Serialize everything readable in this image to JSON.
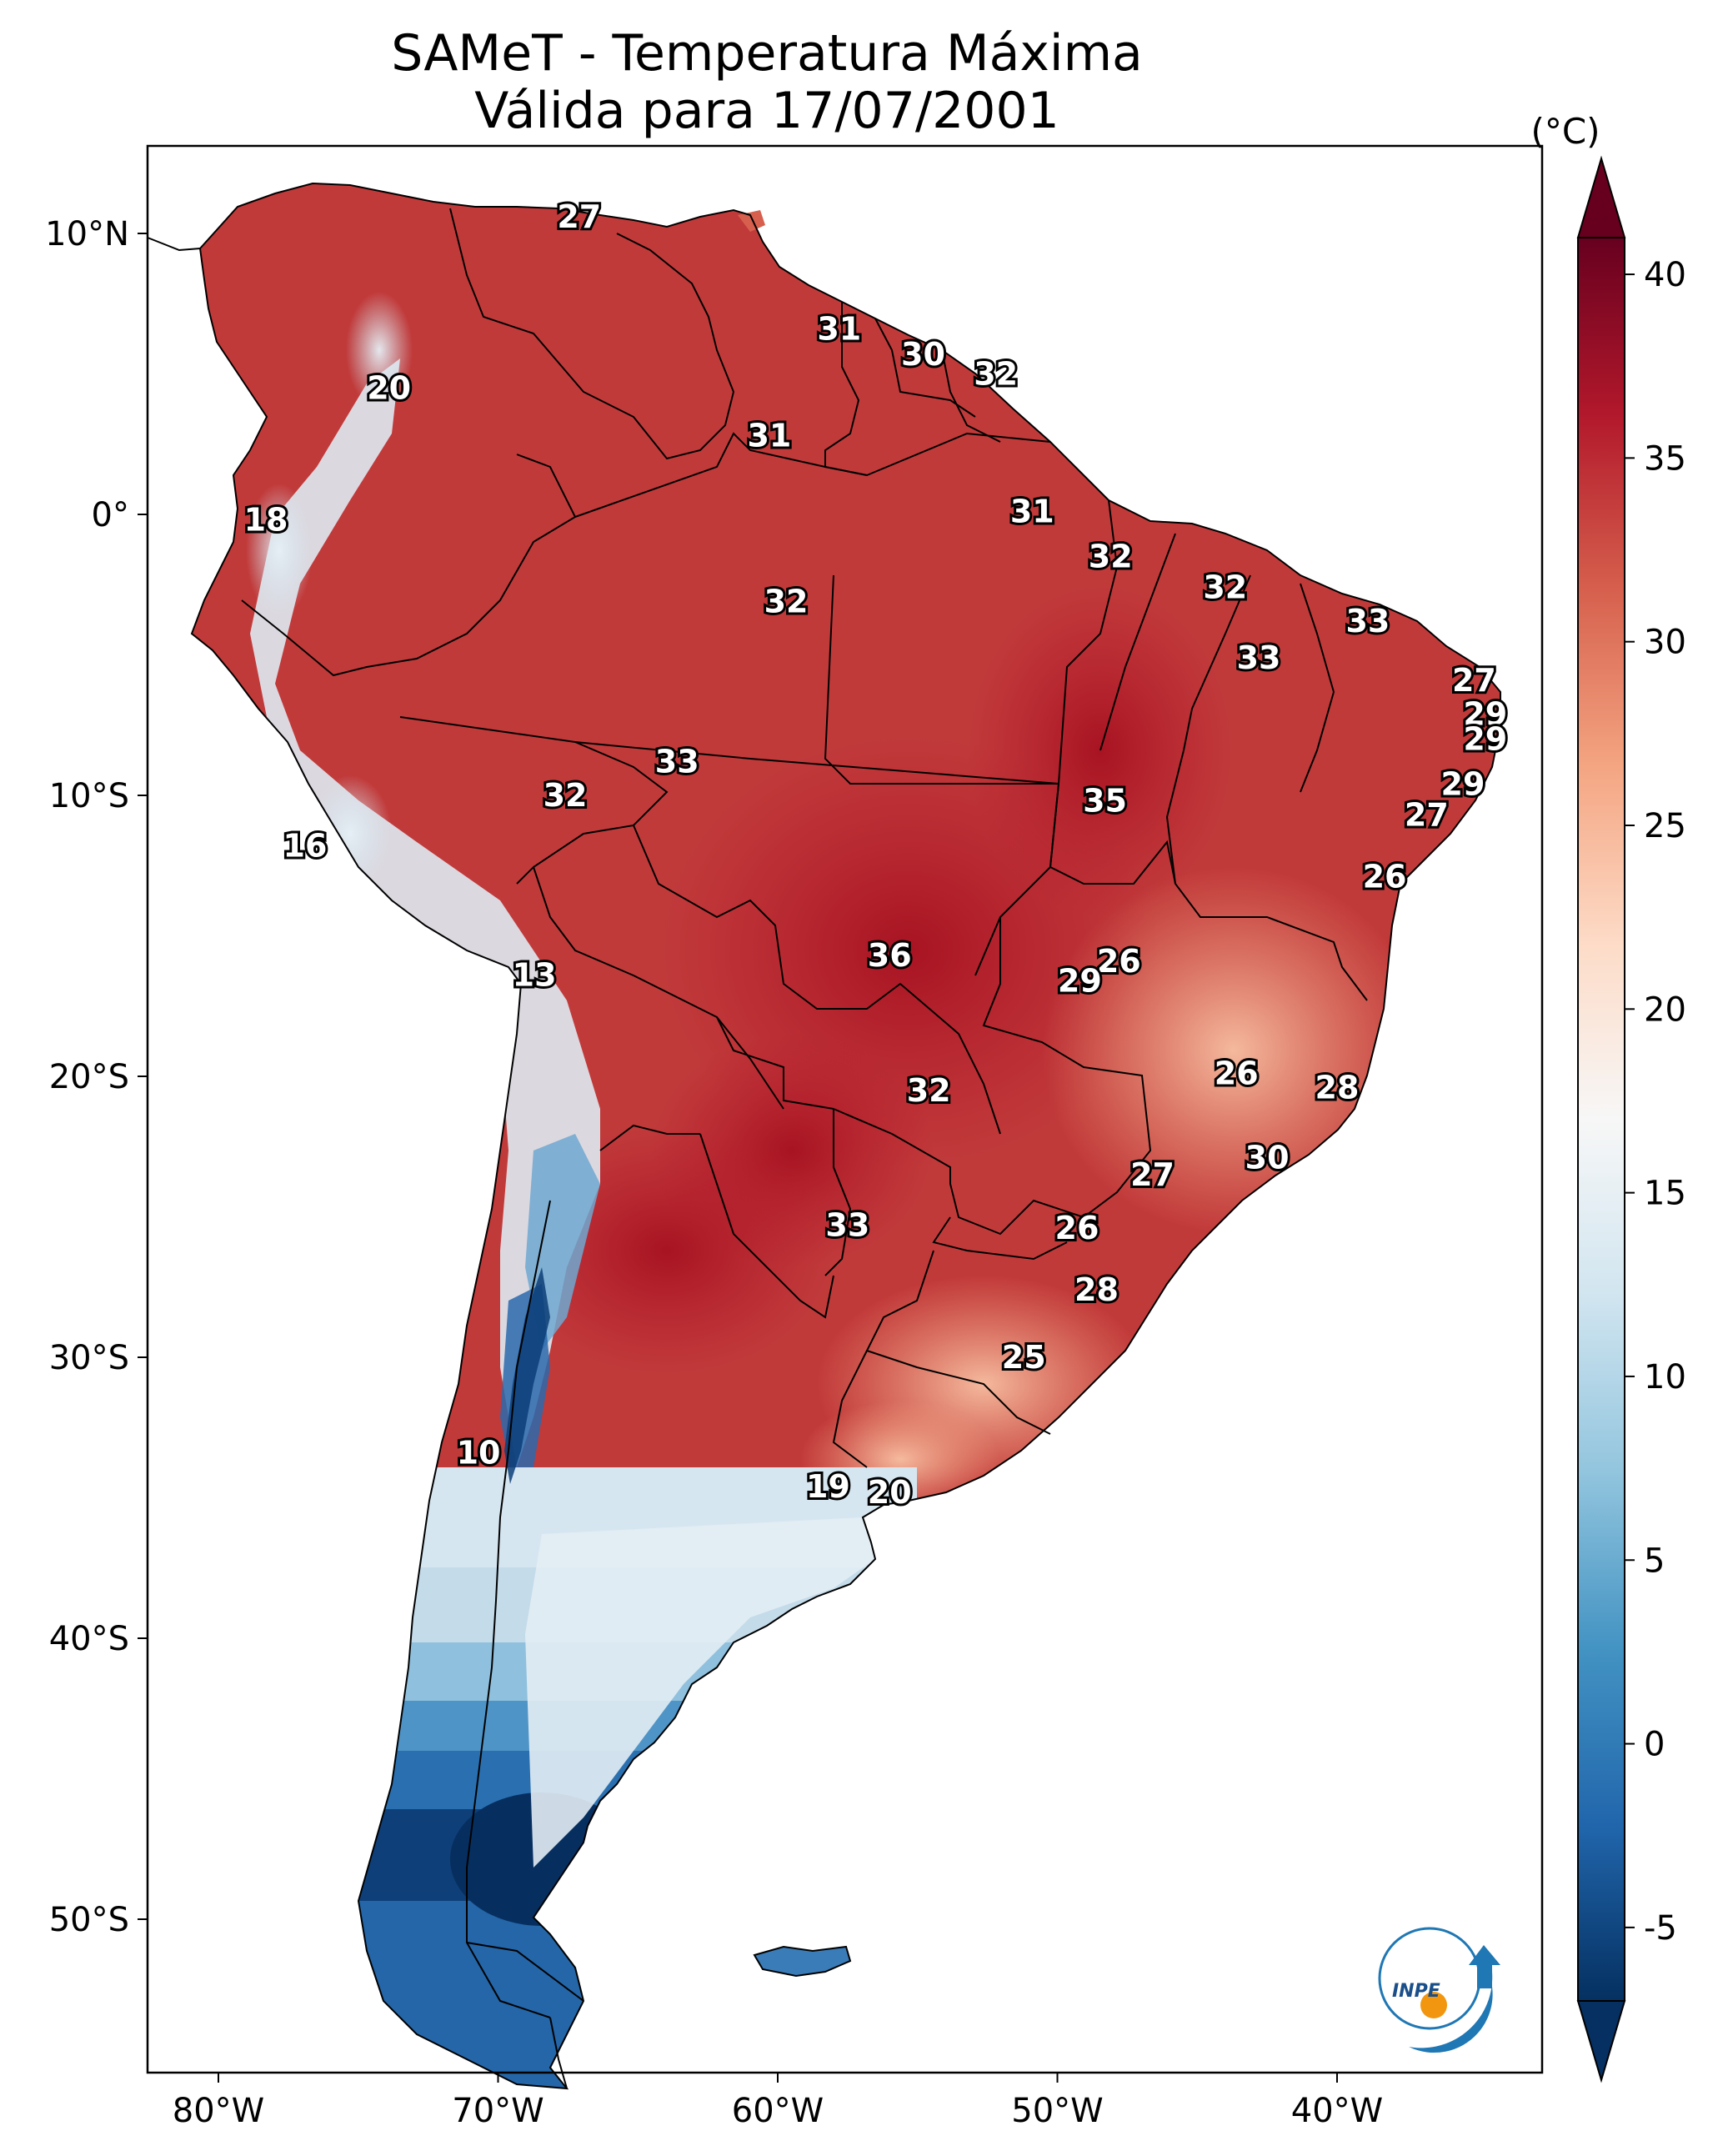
{
  "title": {
    "line1": "SAMeT - Temperatura Máxima",
    "line2": "Válida para 17/07/2001"
  },
  "map": {
    "lon_ticks": [
      "80°W",
      "70°W",
      "60°W",
      "50°W",
      "40°W"
    ],
    "lat_ticks": [
      "10°N",
      "0°",
      "10°S",
      "20°S",
      "30°S",
      "40°S",
      "50°S"
    ],
    "labels": [
      {
        "text": "27",
        "lon": -67.1,
        "lat": 10.6
      },
      {
        "text": "20",
        "lon": -73.9,
        "lat": 4.5
      },
      {
        "text": "31",
        "lon": -57.8,
        "lat": 6.6
      },
      {
        "text": "30",
        "lon": -54.8,
        "lat": 5.7
      },
      {
        "text": "32",
        "lon": -52.2,
        "lat": 5.0
      },
      {
        "text": "31",
        "lon": -60.3,
        "lat": 2.8
      },
      {
        "text": "18",
        "lon": -78.3,
        "lat": -0.2
      },
      {
        "text": "31",
        "lon": -50.9,
        "lat": 0.1
      },
      {
        "text": "32",
        "lon": -48.1,
        "lat": -1.5
      },
      {
        "text": "32",
        "lon": -59.7,
        "lat": -3.1
      },
      {
        "text": "32",
        "lon": -44.0,
        "lat": -2.6
      },
      {
        "text": "33",
        "lon": -38.9,
        "lat": -3.8
      },
      {
        "text": "33",
        "lon": -42.8,
        "lat": -5.1
      },
      {
        "text": "27",
        "lon": -35.1,
        "lat": -5.9
      },
      {
        "text": "29",
        "lon": -34.7,
        "lat": -7.1
      },
      {
        "text": "29",
        "lon": -34.7,
        "lat": -8.0
      },
      {
        "text": "33",
        "lon": -63.6,
        "lat": -8.8
      },
      {
        "text": "32",
        "lon": -67.6,
        "lat": -10.0
      },
      {
        "text": "35",
        "lon": -48.3,
        "lat": -10.2
      },
      {
        "text": "29",
        "lon": -35.5,
        "lat": -9.6
      },
      {
        "text": "27",
        "lon": -36.8,
        "lat": -10.7
      },
      {
        "text": "16",
        "lon": -76.9,
        "lat": -11.8
      },
      {
        "text": "26",
        "lon": -38.3,
        "lat": -12.9
      },
      {
        "text": "13",
        "lon": -68.7,
        "lat": -16.4
      },
      {
        "text": "36",
        "lon": -56.0,
        "lat": -15.7
      },
      {
        "text": "26",
        "lon": -47.8,
        "lat": -15.9
      },
      {
        "text": "29",
        "lon": -49.2,
        "lat": -16.6
      },
      {
        "text": "26",
        "lon": -43.6,
        "lat": -19.9
      },
      {
        "text": "28",
        "lon": -40.0,
        "lat": -20.4
      },
      {
        "text": "32",
        "lon": -54.6,
        "lat": -20.5
      },
      {
        "text": "30",
        "lon": -42.5,
        "lat": -22.9
      },
      {
        "text": "27",
        "lon": -46.6,
        "lat": -23.5
      },
      {
        "text": "26",
        "lon": -49.3,
        "lat": -25.4
      },
      {
        "text": "33",
        "lon": -57.5,
        "lat": -25.3
      },
      {
        "text": "28",
        "lon": -48.6,
        "lat": -27.6
      },
      {
        "text": "25",
        "lon": -51.2,
        "lat": -30.0
      },
      {
        "text": "10",
        "lon": -70.7,
        "lat": -33.4
      },
      {
        "text": "19",
        "lon": -58.2,
        "lat": -34.6
      },
      {
        "text": "20",
        "lon": -56.0,
        "lat": -34.8
      }
    ]
  },
  "colorbar": {
    "unit": "(°C)",
    "ticks": [
      "40",
      "35",
      "30",
      "25",
      "20",
      "15",
      "10",
      "5",
      "0",
      "-5"
    ],
    "min": -7,
    "max": 41,
    "colors": [
      "#053061",
      "#2166ac",
      "#4393c3",
      "#92c5de",
      "#d1e5f0",
      "#f7f7f7",
      "#fddbc7",
      "#f4a582",
      "#d6604d",
      "#b2182b",
      "#67001f"
    ]
  },
  "logo": {
    "text": "INPE"
  }
}
